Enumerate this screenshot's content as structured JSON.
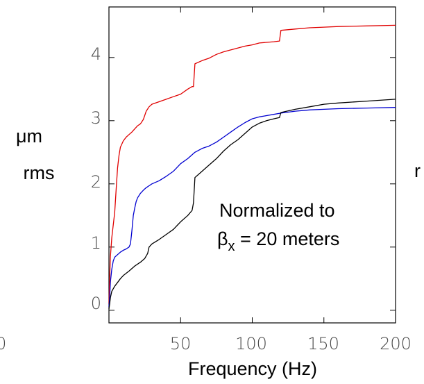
{
  "chart_data": {
    "type": "line",
    "xlabel": "Frequency (Hz)",
    "ylabel": [
      "μm",
      "rms"
    ],
    "xlim": [
      0,
      200
    ],
    "ylim": [
      -0.2,
      4.8
    ],
    "x_ticks": [
      "50",
      "100",
      "150",
      "200"
    ],
    "y_ticks": [
      "0",
      "1",
      "2",
      "3",
      "4"
    ],
    "x_tick_values": [
      50,
      100,
      150,
      200
    ],
    "y_tick_values": [
      0,
      1,
      2,
      3,
      4
    ],
    "left_cut_label": "0",
    "right_cut_label": "r",
    "annotation": {
      "line1": "Normalized to",
      "beta": "β",
      "sub": "x",
      "rest": " = 20 meters"
    },
    "grid": false,
    "series": [
      {
        "color": "#e00000",
        "points": [
          [
            0,
            0.1
          ],
          [
            0.5,
            0.5
          ],
          [
            1,
            0.85
          ],
          [
            2,
            1.15
          ],
          [
            3,
            1.35
          ],
          [
            4,
            1.55
          ],
          [
            5,
            1.9
          ],
          [
            6,
            2.25
          ],
          [
            7,
            2.45
          ],
          [
            8,
            2.58
          ],
          [
            10,
            2.68
          ],
          [
            12,
            2.74
          ],
          [
            14,
            2.78
          ],
          [
            16,
            2.82
          ],
          [
            18,
            2.87
          ],
          [
            20,
            2.92
          ],
          [
            22,
            2.95
          ],
          [
            24,
            3.02
          ],
          [
            26,
            3.15
          ],
          [
            28,
            3.22
          ],
          [
            30,
            3.26
          ],
          [
            35,
            3.3
          ],
          [
            40,
            3.34
          ],
          [
            45,
            3.38
          ],
          [
            50,
            3.42
          ],
          [
            55,
            3.5
          ],
          [
            58,
            3.54
          ],
          [
            59,
            3.54
          ],
          [
            60,
            3.9
          ],
          [
            65,
            3.95
          ],
          [
            70,
            3.99
          ],
          [
            75,
            4.05
          ],
          [
            80,
            4.09
          ],
          [
            85,
            4.12
          ],
          [
            90,
            4.15
          ],
          [
            95,
            4.18
          ],
          [
            100,
            4.2
          ],
          [
            105,
            4.23
          ],
          [
            110,
            4.24
          ],
          [
            115,
            4.25
          ],
          [
            119,
            4.26
          ],
          [
            120,
            4.43
          ],
          [
            130,
            4.45
          ],
          [
            140,
            4.47
          ],
          [
            150,
            4.48
          ],
          [
            160,
            4.49
          ],
          [
            180,
            4.5
          ],
          [
            200,
            4.51
          ]
        ]
      },
      {
        "color": "#0000d0",
        "points": [
          [
            0,
            0.05
          ],
          [
            0.5,
            0.2
          ],
          [
            1,
            0.45
          ],
          [
            2,
            0.65
          ],
          [
            3,
            0.78
          ],
          [
            4,
            0.84
          ],
          [
            6,
            0.88
          ],
          [
            8,
            0.92
          ],
          [
            10,
            0.95
          ],
          [
            12,
            0.97
          ],
          [
            14,
            1.0
          ],
          [
            15,
            1.05
          ],
          [
            16,
            1.25
          ],
          [
            17,
            1.5
          ],
          [
            18,
            1.62
          ],
          [
            19,
            1.72
          ],
          [
            20,
            1.78
          ],
          [
            22,
            1.85
          ],
          [
            24,
            1.9
          ],
          [
            26,
            1.94
          ],
          [
            28,
            1.97
          ],
          [
            30,
            2.0
          ],
          [
            35,
            2.05
          ],
          [
            40,
            2.12
          ],
          [
            45,
            2.2
          ],
          [
            50,
            2.32
          ],
          [
            55,
            2.4
          ],
          [
            58,
            2.46
          ],
          [
            60,
            2.5
          ],
          [
            65,
            2.56
          ],
          [
            70,
            2.6
          ],
          [
            75,
            2.66
          ],
          [
            80,
            2.74
          ],
          [
            85,
            2.82
          ],
          [
            90,
            2.9
          ],
          [
            95,
            2.97
          ],
          [
            100,
            3.03
          ],
          [
            105,
            3.06
          ],
          [
            110,
            3.08
          ],
          [
            115,
            3.1
          ],
          [
            120,
            3.12
          ],
          [
            130,
            3.15
          ],
          [
            140,
            3.17
          ],
          [
            150,
            3.18
          ],
          [
            160,
            3.19
          ],
          [
            180,
            3.2
          ],
          [
            200,
            3.21
          ]
        ]
      },
      {
        "color": "#000000",
        "points": [
          [
            0,
            0.02
          ],
          [
            0.5,
            0.1
          ],
          [
            1,
            0.2
          ],
          [
            2,
            0.3
          ],
          [
            4,
            0.38
          ],
          [
            6,
            0.44
          ],
          [
            8,
            0.5
          ],
          [
            10,
            0.55
          ],
          [
            14,
            0.62
          ],
          [
            18,
            0.7
          ],
          [
            22,
            0.76
          ],
          [
            25,
            0.82
          ],
          [
            27,
            0.9
          ],
          [
            28,
            1.0
          ],
          [
            30,
            1.05
          ],
          [
            35,
            1.12
          ],
          [
            40,
            1.2
          ],
          [
            45,
            1.28
          ],
          [
            50,
            1.4
          ],
          [
            55,
            1.5
          ],
          [
            58,
            1.58
          ],
          [
            59,
            1.7
          ],
          [
            60,
            2.1
          ],
          [
            65,
            2.2
          ],
          [
            70,
            2.3
          ],
          [
            75,
            2.4
          ],
          [
            80,
            2.52
          ],
          [
            85,
            2.62
          ],
          [
            90,
            2.7
          ],
          [
            95,
            2.8
          ],
          [
            100,
            2.9
          ],
          [
            105,
            2.96
          ],
          [
            110,
            3.0
          ],
          [
            115,
            3.03
          ],
          [
            119,
            3.05
          ],
          [
            120,
            3.13
          ],
          [
            130,
            3.18
          ],
          [
            140,
            3.22
          ],
          [
            150,
            3.26
          ],
          [
            160,
            3.28
          ],
          [
            180,
            3.31
          ],
          [
            200,
            3.34
          ]
        ]
      }
    ]
  }
}
